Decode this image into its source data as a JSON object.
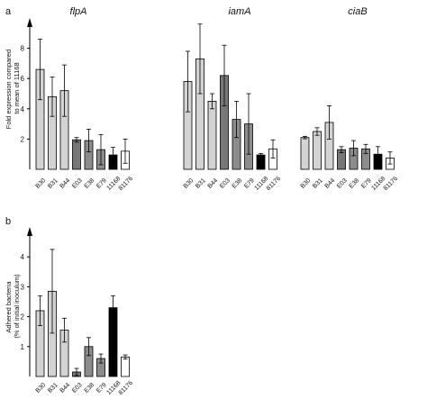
{
  "chart_data": [
    {
      "type": "bar",
      "panel_label": "a",
      "ylabel": [
        "Fold expression compared",
        "to mean of 11168"
      ],
      "yticks": [
        2,
        4,
        6,
        8
      ],
      "ylim": [
        0,
        10
      ],
      "groups": [
        {
          "title": "flpA",
          "categories": [
            "B30",
            "B31",
            "B44",
            "E03",
            "E38",
            "E79",
            "11168",
            "81176"
          ],
          "values": [
            6.6,
            4.8,
            5.2,
            1.95,
            1.9,
            1.3,
            0.95,
            1.2
          ],
          "errors": [
            2.0,
            1.3,
            1.7,
            0.15,
            0.75,
            1.0,
            0.5,
            0.8
          ]
        },
        {
          "title": "iamA",
          "categories": [
            "B30",
            "B31",
            "B44",
            "E03",
            "E38",
            "E79",
            "11168",
            "81176"
          ],
          "values": [
            5.8,
            7.3,
            4.5,
            6.2,
            3.3,
            3.0,
            0.95,
            1.35
          ],
          "errors": [
            2.0,
            2.3,
            0.5,
            2.0,
            1.2,
            2.0,
            0.1,
            0.6
          ]
        },
        {
          "title": "ciaB",
          "categories": [
            "B30",
            "B31",
            "B44",
            "E03",
            "E38",
            "E79",
            "11168",
            "81176"
          ],
          "values": [
            2.1,
            2.5,
            3.1,
            1.3,
            1.4,
            1.35,
            1.0,
            0.75
          ],
          "errors": [
            0.08,
            0.25,
            1.1,
            0.2,
            0.5,
            0.3,
            0.5,
            0.4
          ]
        }
      ]
    },
    {
      "type": "bar",
      "panel_label": "b",
      "ylabel": [
        "Adhered bacteria",
        "(% of initial inoculum)"
      ],
      "yticks": [
        1,
        2,
        3,
        4
      ],
      "ylim": [
        0,
        5
      ],
      "groups": [
        {
          "title": "",
          "categories": [
            "B30",
            "B31",
            "B44",
            "E03",
            "E38",
            "E79",
            "11168",
            "81176"
          ],
          "values": [
            2.2,
            2.85,
            1.55,
            0.15,
            1.0,
            0.6,
            2.3,
            0.65
          ],
          "errors": [
            0.5,
            1.4,
            0.4,
            0.12,
            0.3,
            0.15,
            0.4,
            0.07
          ]
        }
      ]
    }
  ],
  "bar_colors": [
    "#d3d3d3",
    "#d3d3d3",
    "#d3d3d3",
    "#777777",
    "#8c8c8c",
    "#8c8c8c",
    "#000000",
    "#ffffff"
  ],
  "axis_color": "#000000"
}
